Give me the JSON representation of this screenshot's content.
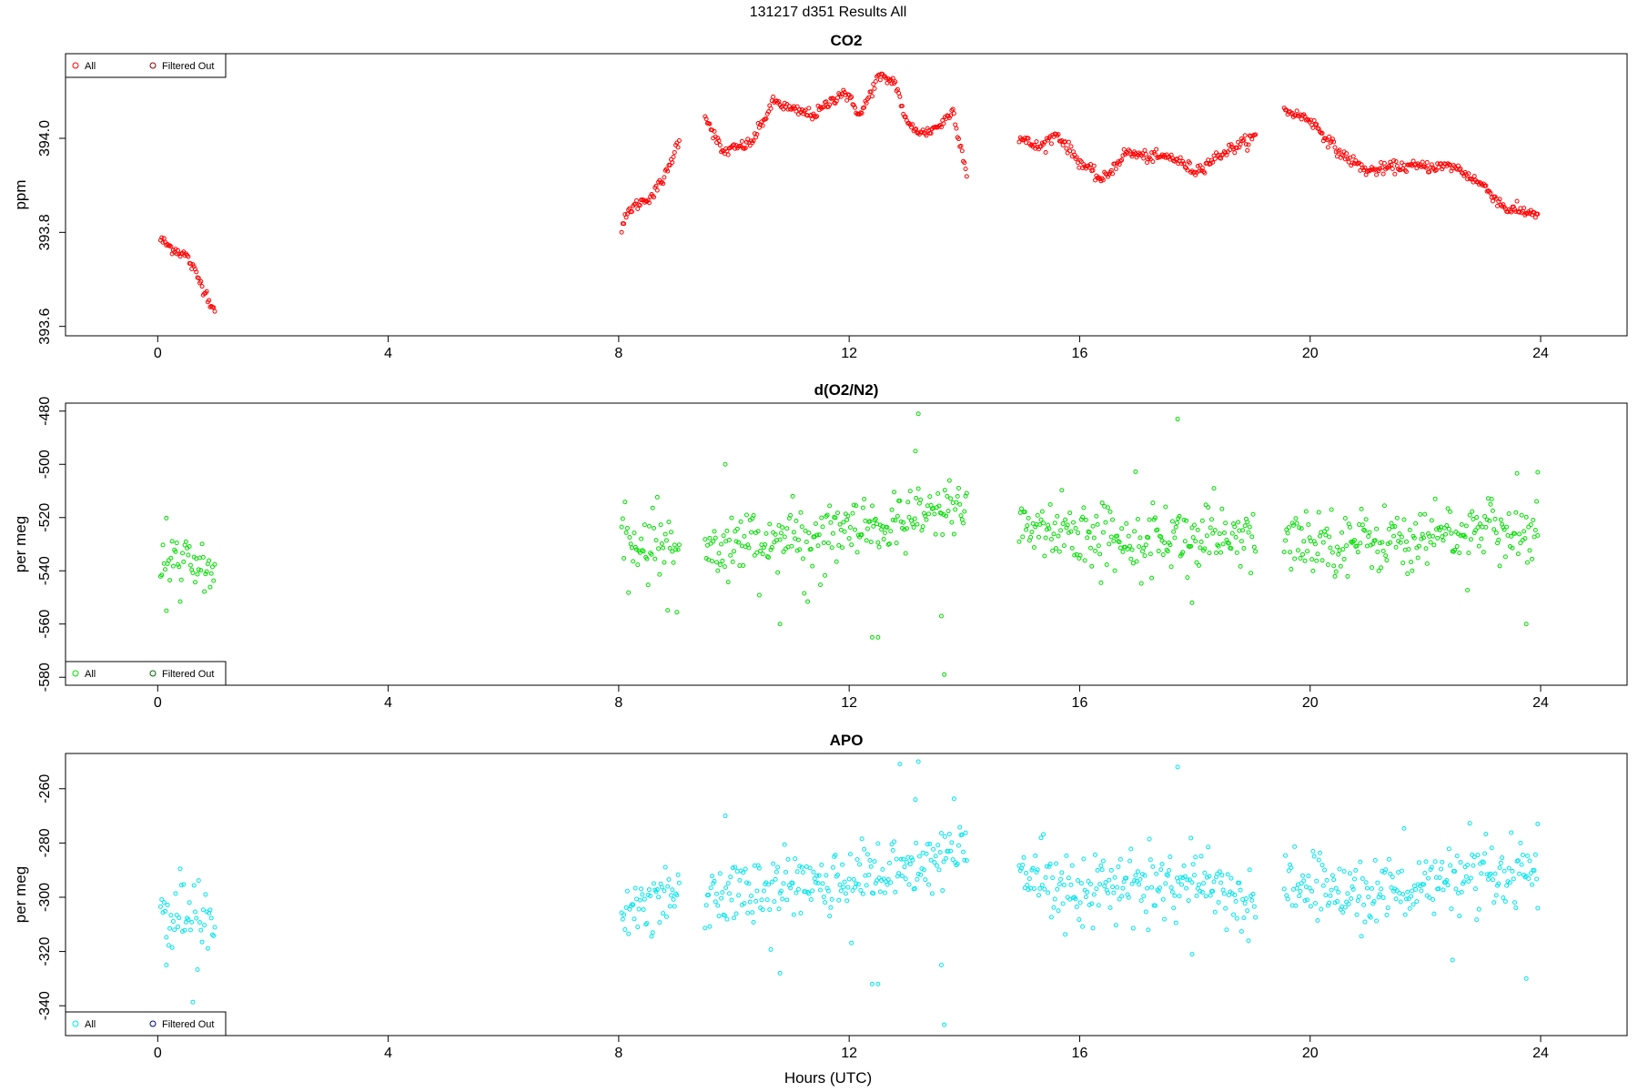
{
  "figure": {
    "title": "131217   d351   Results All",
    "xlabel": "Hours (UTC)"
  },
  "chart_data": [
    {
      "type": "scatter",
      "title": "CO2",
      "xlabel": "Hours (UTC)",
      "ylabel": "ppm",
      "xlim": [
        -1.6,
        25.5
      ],
      "ylim": [
        393.58,
        394.18
      ],
      "xticks": [
        0,
        4,
        8,
        12,
        16,
        20,
        24
      ],
      "yticks": [
        393.6,
        393.8,
        394.0
      ],
      "ytick_labels": [
        "393.6",
        "393.8",
        "394.0"
      ],
      "legend": {
        "position": "top-left",
        "entries": [
          {
            "label": "All",
            "color": "#ff0000"
          },
          {
            "label": "Filtered Out",
            "color": "#8b0000"
          }
        ]
      },
      "color": "#ff0000",
      "gen": {
        "mode": "trend",
        "noise": 0.006,
        "knots": [
          [
            0.0,
            393.79
          ],
          [
            0.2,
            393.77
          ],
          [
            0.5,
            393.75
          ],
          [
            0.8,
            393.68
          ],
          [
            1.0,
            393.63
          ],
          [
            8.05,
            393.81
          ],
          [
            8.2,
            393.85
          ],
          [
            8.6,
            393.88
          ],
          [
            8.85,
            393.93
          ],
          [
            9.05,
            394.0
          ],
          [
            9.5,
            394.05
          ],
          [
            9.8,
            393.97
          ],
          [
            10.3,
            393.99
          ],
          [
            10.7,
            394.08
          ],
          [
            11.0,
            394.06
          ],
          [
            11.4,
            394.05
          ],
          [
            11.9,
            394.1
          ],
          [
            12.2,
            394.05
          ],
          [
            12.5,
            394.13
          ],
          [
            12.8,
            394.12
          ],
          [
            13.0,
            394.03
          ],
          [
            13.3,
            394.01
          ],
          [
            13.6,
            394.03
          ],
          [
            13.8,
            394.06
          ],
          [
            14.05,
            393.92
          ],
          [
            14.95,
            394.0
          ],
          [
            15.3,
            393.98
          ],
          [
            15.6,
            394.01
          ],
          [
            16.0,
            393.95
          ],
          [
            16.4,
            393.91
          ],
          [
            16.8,
            393.97
          ],
          [
            17.2,
            393.96
          ],
          [
            17.6,
            393.96
          ],
          [
            18.0,
            393.93
          ],
          [
            18.5,
            393.97
          ],
          [
            19.0,
            394.0
          ],
          [
            19.55,
            394.06
          ],
          [
            20.0,
            394.04
          ],
          [
            20.5,
            393.97
          ],
          [
            21.0,
            393.93
          ],
          [
            21.5,
            393.94
          ],
          [
            22.0,
            393.94
          ],
          [
            22.5,
            393.94
          ],
          [
            23.0,
            393.9
          ],
          [
            23.4,
            393.85
          ],
          [
            23.95,
            393.84
          ]
        ]
      }
    },
    {
      "type": "scatter",
      "title": "d(O2/N2)",
      "xlabel": "Hours (UTC)",
      "ylabel": "per meg",
      "xlim": [
        -1.6,
        25.5
      ],
      "ylim": [
        -583,
        -477
      ],
      "xticks": [
        0,
        4,
        8,
        12,
        16,
        20,
        24
      ],
      "yticks": [
        -580,
        -560,
        -540,
        -520,
        -500,
        -480
      ],
      "ytick_labels": [
        "-580",
        "-560",
        "-540",
        "-520",
        "-500",
        "-480"
      ],
      "legend": {
        "position": "bottom-left",
        "entries": [
          {
            "label": "All",
            "color": "#00dd00"
          },
          {
            "label": "Filtered Out",
            "color": "#006400"
          }
        ]
      },
      "color": "#00dd00",
      "gen": {
        "mode": "noise",
        "noise": 6,
        "knots": [
          [
            0.0,
            -538
          ],
          [
            1.0,
            -539
          ],
          [
            8.0,
            -533
          ],
          [
            9.0,
            -529
          ],
          [
            9.5,
            -530
          ],
          [
            11.0,
            -528
          ],
          [
            12.0,
            -526
          ],
          [
            13.0,
            -522
          ],
          [
            14.05,
            -514
          ],
          [
            14.95,
            -522
          ],
          [
            16.0,
            -527
          ],
          [
            18.0,
            -527
          ],
          [
            19.05,
            -530
          ],
          [
            19.5,
            -528
          ],
          [
            21.0,
            -529
          ],
          [
            22.5,
            -526
          ],
          [
            23.95,
            -524
          ]
        ]
      },
      "outliers": [
        [
          13.2,
          -481
        ],
        [
          13.65,
          -579
        ],
        [
          17.7,
          -483
        ],
        [
          12.4,
          -565
        ],
        [
          12.5,
          -565
        ],
        [
          10.8,
          -560
        ],
        [
          9.85,
          -500
        ],
        [
          13.15,
          -495
        ],
        [
          23.75,
          -560
        ],
        [
          23.95,
          -503
        ],
        [
          17.95,
          -552
        ],
        [
          0.15,
          -555
        ],
        [
          13.6,
          -557
        ]
      ]
    },
    {
      "type": "scatter",
      "title": "APO",
      "xlabel": "Hours (UTC)",
      "ylabel": "per meg",
      "xlim": [
        -1.6,
        25.5
      ],
      "ylim": [
        -351,
        -247
      ],
      "xticks": [
        0,
        4,
        8,
        12,
        16,
        20,
        24
      ],
      "yticks": [
        -340,
        -320,
        -300,
        -280,
        -260
      ],
      "ytick_labels": [
        "-340",
        "-320",
        "-300",
        "-280",
        "-260"
      ],
      "legend": {
        "position": "bottom-left",
        "entries": [
          {
            "label": "All",
            "color": "#00e5ee"
          },
          {
            "label": "Filtered Out",
            "color": "#00008b"
          }
        ]
      },
      "color": "#00e5ee",
      "gen": {
        "mode": "noise",
        "noise": 6,
        "knots": [
          [
            0.0,
            -308
          ],
          [
            1.0,
            -309
          ],
          [
            8.0,
            -302
          ],
          [
            9.0,
            -298
          ],
          [
            9.5,
            -299
          ],
          [
            11.0,
            -296
          ],
          [
            12.0,
            -293
          ],
          [
            13.0,
            -290
          ],
          [
            14.05,
            -282
          ],
          [
            14.95,
            -290
          ],
          [
            16.0,
            -296
          ],
          [
            18.0,
            -296
          ],
          [
            19.05,
            -300
          ],
          [
            19.5,
            -296
          ],
          [
            21.0,
            -298
          ],
          [
            22.5,
            -295
          ],
          [
            23.95,
            -292
          ]
        ]
      },
      "outliers": [
        [
          13.2,
          -250
        ],
        [
          13.65,
          -347
        ],
        [
          17.7,
          -252
        ],
        [
          12.4,
          -332
        ],
        [
          12.5,
          -332
        ],
        [
          10.8,
          -328
        ],
        [
          9.85,
          -270
        ],
        [
          13.15,
          -264
        ],
        [
          23.75,
          -330
        ],
        [
          23.95,
          -273
        ],
        [
          17.95,
          -321
        ],
        [
          0.15,
          -325
        ],
        [
          13.6,
          -325
        ]
      ]
    }
  ]
}
